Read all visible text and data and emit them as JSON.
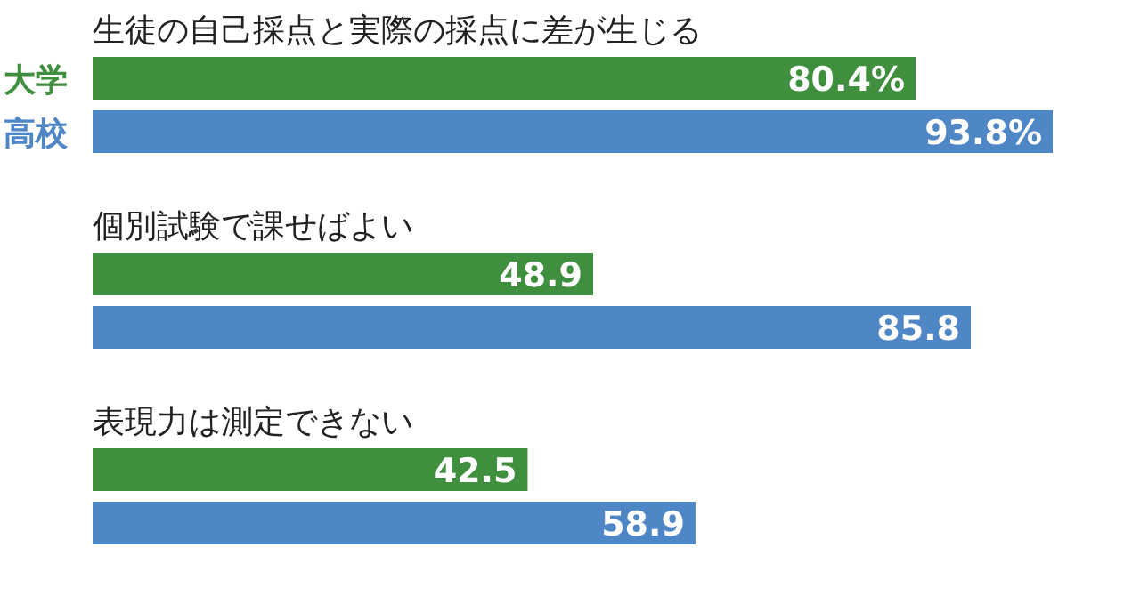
{
  "chart_data": {
    "type": "bar",
    "orientation": "horizontal",
    "legend": "left",
    "categories": [
      "生徒の自己採点と実際の採点に差が生じる",
      "個別試験で課せばよい",
      "表現力は測定できない"
    ],
    "series": [
      {
        "name": "大学",
        "color": "#3f8f3f",
        "values": [
          80.4,
          48.9,
          42.5
        ],
        "value_labels": [
          "80.4%",
          "48.9",
          "42.5"
        ]
      },
      {
        "name": "高校",
        "color": "#4f86c6",
        "values": [
          93.8,
          85.8,
          58.9
        ],
        "value_labels": [
          "93.8%",
          "85.8",
          "58.9"
        ]
      }
    ]
  }
}
